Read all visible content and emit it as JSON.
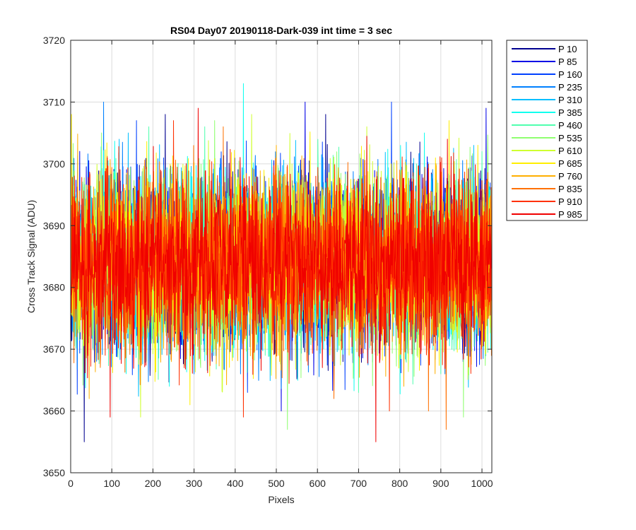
{
  "chart_data": {
    "type": "line",
    "title": "RS04 Day07 20190118-Dark-039 int time = 3 sec",
    "xlabel": "Pixels",
    "ylabel": "Cross Track Signal (ADU)",
    "xlim": [
      0,
      1024
    ],
    "ylim": [
      3650,
      3720
    ],
    "xticks": [
      0,
      100,
      200,
      300,
      400,
      500,
      600,
      700,
      800,
      900,
      1000
    ],
    "yticks": [
      3650,
      3660,
      3670,
      3680,
      3690,
      3700,
      3710,
      3720
    ],
    "grid": true,
    "legend_position": "outside-top-right",
    "n_points": 1024,
    "signal_mean": 3684,
    "signal_spread": 7,
    "series": [
      {
        "name": "P 10",
        "color": "#00008f",
        "notable": [
          [
            33,
            3655
          ],
          [
            230,
            3708
          ],
          [
            620,
            3708
          ]
        ]
      },
      {
        "name": "P 85",
        "color": "#0000e6",
        "notable": [
          [
            512,
            3660
          ],
          [
            570,
            3710
          ],
          [
            1010,
            3709
          ]
        ]
      },
      {
        "name": "P 160",
        "color": "#0040ff",
        "notable": [
          [
            160,
            3707
          ],
          [
            430,
            3663
          ],
          [
            780,
            3710
          ]
        ]
      },
      {
        "name": "P 235",
        "color": "#0080ff",
        "notable": [
          [
            80,
            3710
          ],
          [
            300,
            3666
          ],
          [
            910,
            3666
          ]
        ]
      },
      {
        "name": "P 310",
        "color": "#00bfff",
        "notable": [
          [
            140,
            3705
          ],
          [
            640,
            3664
          ],
          [
            980,
            3703
          ]
        ]
      },
      {
        "name": "P 385",
        "color": "#10ffef",
        "notable": [
          [
            420,
            3713
          ],
          [
            240,
            3664
          ],
          [
            860,
            3705
          ]
        ]
      },
      {
        "name": "P 460",
        "color": "#50ffaf",
        "notable": [
          [
            190,
            3706
          ],
          [
            700,
            3663
          ],
          [
            1000,
            3702
          ]
        ]
      },
      {
        "name": "P 535",
        "color": "#8fff70",
        "notable": [
          [
            527,
            3657
          ],
          [
            350,
            3707
          ],
          [
            955,
            3659
          ]
        ]
      },
      {
        "name": "P 610",
        "color": "#cfff30",
        "notable": [
          [
            170,
            3659
          ],
          [
            440,
            3708
          ],
          [
            720,
            3706
          ]
        ]
      },
      {
        "name": "P 685",
        "color": "#ffef00",
        "notable": [
          [
            2,
            3708
          ],
          [
            290,
            3661
          ],
          [
            920,
            3707
          ]
        ]
      },
      {
        "name": "P 760",
        "color": "#ffaf00",
        "notable": [
          [
            45,
            3662
          ],
          [
            500,
            3703
          ],
          [
            810,
            3664
          ]
        ]
      },
      {
        "name": "P 835",
        "color": "#ff7000",
        "notable": [
          [
            640,
            3662
          ],
          [
            870,
            3660
          ],
          [
            913,
            3657
          ]
        ]
      },
      {
        "name": "P 910",
        "color": "#ff3000",
        "notable": [
          [
            420,
            3659
          ],
          [
            775,
            3660
          ],
          [
            250,
            3707
          ]
        ]
      },
      {
        "name": "P 985",
        "color": "#f00000",
        "notable": [
          [
            96,
            3659
          ],
          [
            742,
            3655
          ],
          [
            310,
            3709
          ]
        ]
      }
    ]
  }
}
